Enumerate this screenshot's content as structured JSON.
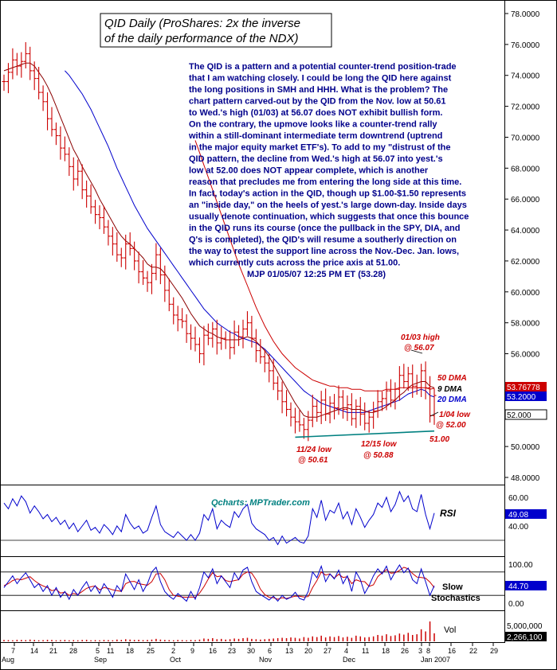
{
  "title": {
    "line1": "QID Daily (ProShares: 2x the inverse",
    "line2": "of the daily performance of the NDX)"
  },
  "commentary": [
    "The QID is a pattern and a potential counter-trend position-trade",
    "that I am watching closely. I could be long the QID here against",
    "the long positions in SMH and HHH. What is the problem? The",
    "chart pattern carved-out by the QID from the Nov. low at 50.61",
    "to Wed.'s high (01/03) at 56.07 does NOT exhibit bullish form.",
    "On the contrary, the upmove looks like a counter-trend rally",
    "within a still-dominant intermediate term downtrend (uptrend",
    "in the major equity market ETF's). To add to my \"distrust of the",
    "QID pattern, the decline from Wed.'s high at 56.07 into yest.'s",
    "low at 52.00  does NOT appear complete, which is another",
    "reason that precludes me from entering the long side at this time.",
    "In fact, today's action in the QID, though up $1.00-$1.50 represents",
    "an \"inside day,\" on the heels of yest.'s large down-day. Inside days",
    "usually denote continuation, which suggests that once this bounce",
    "in the QID runs its course (once the pullback in the SPY, DIA, and",
    "Q's is completed), the QID's will resume a southerly direction on",
    "the way to retest the support line across the Nov.-Dec. Jan. lows,",
    "which currently cuts across the price axis at 51.00.",
    "MJP 01/05/07  12:25 PM ET  (53.28)"
  ],
  "watermark": "Qcharts: MPTrader.com",
  "annotations": {
    "high_label_1": "01/03 high",
    "high_label_2": "@ 56.07",
    "nov_low_1": "11/24 low",
    "nov_low_2": "@ 50.61",
    "dec_low_1": "12/15 low",
    "dec_low_2": "@ 50.88",
    "jan_low_1": "1/04 low",
    "jan_low_2": "@ 52.00",
    "support_level": "51.00"
  },
  "legend": {
    "dma50": "50 DMA",
    "dma9": "9 DMA",
    "dma20": "20 DMA"
  },
  "colors": {
    "price": "#cc0000",
    "dma9": "#8b0000",
    "dma20": "#0000cc",
    "dma50": "#cc0000",
    "support": "#008080",
    "rsi": "#0000cc",
    "stoch_k": "#0000cc",
    "stoch_d": "#cc0000",
    "volume": "#cc0000"
  },
  "chart_data": {
    "type": "ohlc",
    "price_panel": {
      "ylim": [
        47,
        78.6
      ],
      "y_ticks": [
        "78.0000",
        "76.0000",
        "74.0000",
        "72.0000",
        "70.0000",
        "68.0000",
        "66.0000",
        "64.0000",
        "62.0000",
        "60.0000",
        "58.0000",
        "56.0000",
        "54.0000",
        "52.0000",
        "50.0000",
        "48.0000"
      ],
      "last_price_tags": [
        "53.76778",
        "53.2000",
        "52.000"
      ],
      "series_closes": [
        73.6,
        74.2,
        75.0,
        74.6,
        74.9,
        75.4,
        74.3,
        73.8,
        72.9,
        72.3,
        71.2,
        70.5,
        70.1,
        69.3,
        68.9,
        68.1,
        67.3,
        67.8,
        66.6,
        66.2,
        65.5,
        65.0,
        64.8,
        64.2,
        63.6,
        63.1,
        62.4,
        62.2,
        63.1,
        62.8,
        62.0,
        61.3,
        60.9,
        60.6,
        61.2,
        62.4,
        61.1,
        60.1,
        59.2,
        58.5,
        58.2,
        58.1,
        57.3,
        57.0,
        56.6,
        56.0,
        57.2,
        57.0,
        57.6,
        56.7,
        57.0,
        56.9,
        56.4,
        57.4,
        57.1,
        57.6,
        58.0,
        57.0,
        56.2,
        55.8,
        55.4,
        54.9,
        54.1,
        53.6,
        52.9,
        52.4,
        51.9,
        51.6,
        51.4,
        51.1,
        51.7,
        52.6,
        52.2,
        53.0,
        52.1,
        52.8,
        52.5,
        53.2,
        52.4,
        52.7,
        51.8,
        52.6,
        52.1,
        51.5,
        51.9,
        52.3,
        52.9,
        53.1,
        53.6,
        53.0,
        53.7,
        54.6,
        54.2,
        54.7,
        53.9,
        53.8,
        54.9,
        53.8,
        52.0,
        53.3
      ],
      "dma9": [
        74.3,
        74.4,
        74.5,
        74.6,
        74.7,
        74.8,
        74.8,
        74.6,
        74.2,
        73.8,
        73.3,
        72.7,
        72.0,
        71.3,
        70.6,
        69.9,
        69.2,
        68.7,
        68.1,
        67.6,
        67.1,
        66.6,
        66.0,
        65.5,
        65.0,
        64.5,
        64.0,
        63.6,
        63.3,
        63.1,
        62.8,
        62.5,
        62.2,
        61.8,
        61.6,
        61.6,
        61.5,
        61.2,
        60.8,
        60.4,
        60.0,
        59.6,
        59.1,
        58.6,
        58.2,
        57.8,
        57.6,
        57.4,
        57.3,
        57.1,
        57.0,
        56.9,
        56.9,
        56.9,
        56.9,
        57.0,
        57.1,
        57.0,
        56.8,
        56.5,
        56.2,
        55.8,
        55.3,
        54.8,
        54.3,
        53.8,
        53.3,
        52.8,
        52.4,
        52.0,
        51.9,
        51.9,
        51.9,
        52.0,
        52.1,
        52.2,
        52.3,
        52.4,
        52.5,
        52.5,
        52.4,
        52.4,
        52.4,
        52.3,
        52.2,
        52.2,
        52.3,
        52.4,
        52.6,
        52.8,
        53.0,
        53.3,
        53.5,
        53.8,
        54.0,
        54.1,
        54.2,
        54.2,
        53.9,
        53.8
      ],
      "dma20": [
        null,
        null,
        null,
        null,
        null,
        null,
        null,
        null,
        null,
        null,
        null,
        null,
        null,
        null,
        74.3,
        74.0,
        73.6,
        73.2,
        72.8,
        72.3,
        71.8,
        71.2,
        70.6,
        70.0,
        69.4,
        68.7,
        68.0,
        67.4,
        66.8,
        66.2,
        65.6,
        65.1,
        64.6,
        64.1,
        63.7,
        63.3,
        62.9,
        62.5,
        62.1,
        61.7,
        61.3,
        60.9,
        60.5,
        60.1,
        59.7,
        59.3,
        58.9,
        58.6,
        58.3,
        58.0,
        57.8,
        57.6,
        57.4,
        57.3,
        57.1,
        57.0,
        56.9,
        56.8,
        56.7,
        56.5,
        56.3,
        56.0,
        55.7,
        55.4,
        55.1,
        54.8,
        54.5,
        54.2,
        53.9,
        53.6,
        53.4,
        53.2,
        53.0,
        52.8,
        52.7,
        52.6,
        52.5,
        52.4,
        52.3,
        52.2,
        52.2,
        52.2,
        52.2,
        52.2,
        52.3,
        52.4,
        52.5,
        52.6,
        52.7,
        52.8,
        52.9,
        53.0,
        53.2,
        53.4,
        53.5,
        53.6,
        53.7,
        53.6,
        53.3,
        53.2
      ],
      "dma50": [
        null,
        null,
        null,
        null,
        null,
        null,
        null,
        null,
        null,
        null,
        null,
        null,
        null,
        null,
        null,
        null,
        null,
        null,
        null,
        null,
        null,
        null,
        null,
        null,
        null,
        null,
        null,
        null,
        null,
        null,
        null,
        null,
        null,
        null,
        null,
        null,
        null,
        null,
        null,
        null,
        null,
        null,
        null,
        null,
        69.8,
        69.0,
        68.2,
        67.4,
        66.6,
        65.8,
        65.0,
        64.2,
        63.4,
        62.6,
        61.8,
        61.1,
        60.4,
        59.7,
        59.0,
        58.4,
        57.8,
        57.3,
        56.8,
        56.4,
        56.0,
        55.7,
        55.4,
        55.1,
        54.9,
        54.7,
        54.5,
        54.3,
        54.2,
        54.1,
        54.0,
        53.9,
        53.9,
        53.8,
        53.8,
        53.8,
        53.7,
        53.7,
        53.7,
        53.6,
        53.6,
        53.6,
        53.6,
        53.6,
        53.7,
        53.7,
        53.7,
        53.8,
        53.8,
        53.8,
        53.8,
        53.8,
        53.8,
        53.8,
        53.7,
        53.77
      ],
      "support_line": {
        "x": [
          67,
          100
        ],
        "y": [
          50.6,
          51.0
        ]
      }
    },
    "rsi_panel": {
      "label": "RSI",
      "ylim": [
        25,
        68
      ],
      "y_ticks": [
        "60.00",
        "40.00"
      ],
      "last_value": "49.08",
      "values": [
        56,
        52,
        59,
        54,
        61,
        57,
        49,
        54,
        50,
        45,
        48,
        43,
        46,
        41,
        44,
        38,
        42,
        36,
        40,
        44,
        37,
        39,
        35,
        41,
        38,
        34,
        40,
        36,
        48,
        42,
        38,
        40,
        35,
        37,
        46,
        54,
        41,
        36,
        34,
        32,
        36,
        33,
        30,
        34,
        30,
        35,
        48,
        44,
        52,
        38,
        44,
        41,
        39,
        50,
        46,
        52,
        55,
        42,
        38,
        36,
        34,
        30,
        32,
        27,
        33,
        28,
        30,
        32,
        29,
        28,
        33,
        52,
        46,
        58,
        44,
        51,
        49,
        56,
        45,
        50,
        41,
        52,
        46,
        39,
        44,
        48,
        56,
        53,
        60,
        50,
        55,
        64,
        57,
        61,
        52,
        50,
        62,
        48,
        38,
        49.08
      ]
    },
    "stoch_panel": {
      "label_1": "Slow",
      "label_2": "Stochastics",
      "ylim": [
        -8,
        112
      ],
      "y_ticks": [
        "100.00",
        "0.00"
      ],
      "last_value": "44.70",
      "k": [
        40,
        55,
        70,
        50,
        65,
        78,
        60,
        40,
        50,
        30,
        45,
        20,
        40,
        15,
        30,
        10,
        35,
        20,
        40,
        55,
        30,
        45,
        25,
        50,
        35,
        15,
        45,
        30,
        75,
        55,
        35,
        60,
        30,
        50,
        80,
        92,
        55,
        30,
        18,
        10,
        25,
        15,
        5,
        30,
        10,
        40,
        80,
        65,
        88,
        50,
        70,
        55,
        40,
        78,
        60,
        85,
        92,
        55,
        30,
        22,
        15,
        8,
        18,
        5,
        20,
        10,
        15,
        28,
        12,
        8,
        30,
        80,
        65,
        95,
        55,
        75,
        62,
        85,
        50,
        70,
        30,
        80,
        60,
        25,
        45,
        70,
        88,
        75,
        95,
        60,
        80,
        98,
        78,
        90,
        60,
        50,
        88,
        55,
        20,
        44.7
      ],
      "d": [
        45,
        50,
        58,
        62,
        60,
        64,
        68,
        58,
        50,
        44,
        40,
        32,
        35,
        26,
        28,
        20,
        25,
        22,
        30,
        38,
        42,
        44,
        34,
        40,
        38,
        34,
        32,
        30,
        50,
        55,
        56,
        50,
        48,
        46,
        55,
        75,
        76,
        60,
        35,
        20,
        18,
        16,
        15,
        16,
        15,
        26,
        42,
        62,
        78,
        68,
        70,
        58,
        55,
        58,
        60,
        74,
        80,
        77,
        60,
        36,
        22,
        15,
        14,
        10,
        14,
        12,
        15,
        18,
        18,
        16,
        17,
        40,
        58,
        80,
        72,
        75,
        64,
        74,
        66,
        68,
        50,
        60,
        56,
        55,
        43,
        47,
        68,
        78,
        86,
        77,
        78,
        84,
        92,
        88,
        76,
        67,
        66,
        64,
        54,
        40
      ]
    },
    "volume_panel": {
      "label": "Vol",
      "y_ticks": [
        "5,000,000"
      ],
      "last_value": "2,266,100",
      "values": [
        0.4,
        0.35,
        0.3,
        0.45,
        0.4,
        0.35,
        0.5,
        0.4,
        0.3,
        0.35,
        0.45,
        0.4,
        0.3,
        0.35,
        0.4,
        0.3,
        0.35,
        0.3,
        0.4,
        0.45,
        0.3,
        0.35,
        0.3,
        0.4,
        0.35,
        0.3,
        0.5,
        0.4,
        0.6,
        0.5,
        0.4,
        0.45,
        0.35,
        0.4,
        0.5,
        0.7,
        0.5,
        0.4,
        0.35,
        0.3,
        0.4,
        0.35,
        0.3,
        0.4,
        0.35,
        0.5,
        0.8,
        0.7,
        0.9,
        0.6,
        0.7,
        0.5,
        0.6,
        0.8,
        0.7,
        0.9,
        1.0,
        0.7,
        0.6,
        0.5,
        0.6,
        0.7,
        0.8,
        0.9,
        1.0,
        0.9,
        1.1,
        1.0,
        0.8,
        1.2,
        1.0,
        1.4,
        1.2,
        1.6,
        1.1,
        1.4,
        1.2,
        1.5,
        1.1,
        1.3,
        1.0,
        1.6,
        1.4,
        1.1,
        1.2,
        1.4,
        1.8,
        1.6,
        2.0,
        1.5,
        1.7,
        2.2,
        1.9,
        2.4,
        1.8,
        2.0,
        3.4,
        2.8,
        5.6,
        2.27
      ]
    },
    "x_ticks": [
      "7",
      "14",
      "21",
      "28",
      "5",
      "11",
      "18",
      "25",
      "2",
      "9",
      "16",
      "23",
      "30",
      "6",
      "13",
      "20",
      "27",
      "4",
      "11",
      "18",
      "26",
      "3",
      "8",
      "16",
      "22",
      "29"
    ],
    "x_months": [
      "Aug",
      "Sep",
      "Oct",
      "Nov",
      "Dec",
      "Jan 2007"
    ]
  }
}
